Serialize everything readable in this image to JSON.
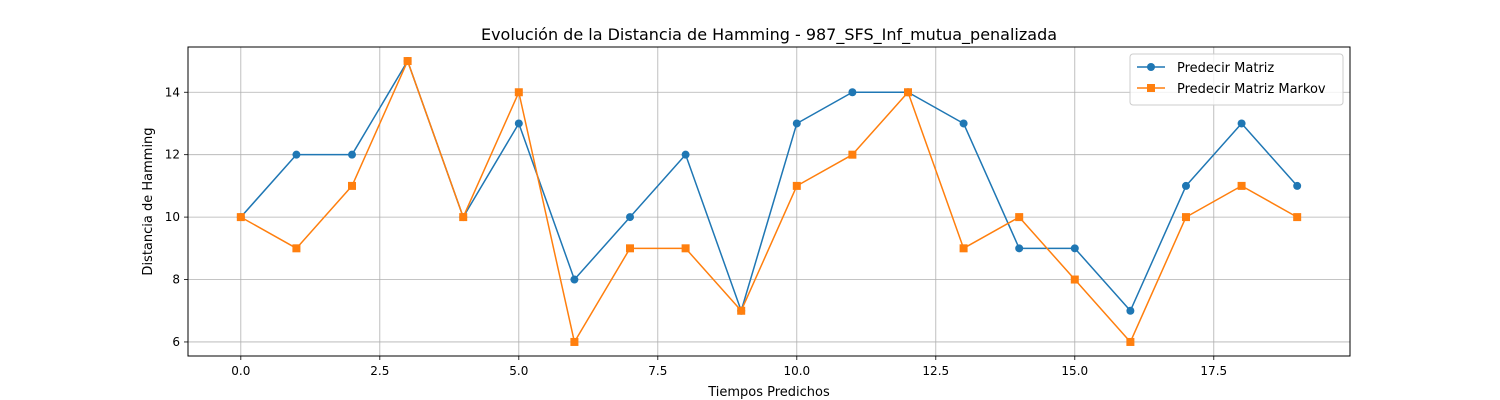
{
  "chart_data": {
    "type": "line",
    "title": "Evolución de la Distancia de Hamming - 987_SFS_Inf_mutua_penalizada",
    "xlabel": "Tiempos Predichos",
    "ylabel": "Distancia de Hamming",
    "x": [
      0,
      1,
      2,
      3,
      4,
      5,
      6,
      7,
      8,
      9,
      10,
      11,
      12,
      13,
      14,
      15,
      16,
      17,
      18,
      19
    ],
    "xlim": [
      -0.95,
      19.95
    ],
    "ylim": [
      5.55,
      15.45
    ],
    "xticks": [
      0.0,
      2.5,
      5.0,
      7.5,
      10.0,
      12.5,
      15.0,
      17.5
    ],
    "xtick_labels": [
      "0.0",
      "2.5",
      "5.0",
      "7.5",
      "10.0",
      "12.5",
      "15.0",
      "17.5"
    ],
    "yticks": [
      6,
      8,
      10,
      12,
      14
    ],
    "ytick_labels": [
      "6",
      "8",
      "10",
      "12",
      "14"
    ],
    "grid": true,
    "legend_position": "top-right",
    "series": [
      {
        "name": "Predecir Matriz",
        "marker": "circle",
        "color": "#1f77b4",
        "values": [
          10,
          12,
          12,
          15,
          10,
          13,
          8,
          10,
          12,
          7,
          13,
          14,
          14,
          13,
          9,
          9,
          7,
          11,
          13,
          11
        ]
      },
      {
        "name": "Predecir Matriz Markov",
        "marker": "square",
        "color": "#ff7f0e",
        "values": [
          10,
          9,
          11,
          15,
          10,
          14,
          6,
          9,
          9,
          7,
          11,
          12,
          14,
          9,
          10,
          8,
          6,
          10,
          11,
          10
        ]
      }
    ]
  }
}
